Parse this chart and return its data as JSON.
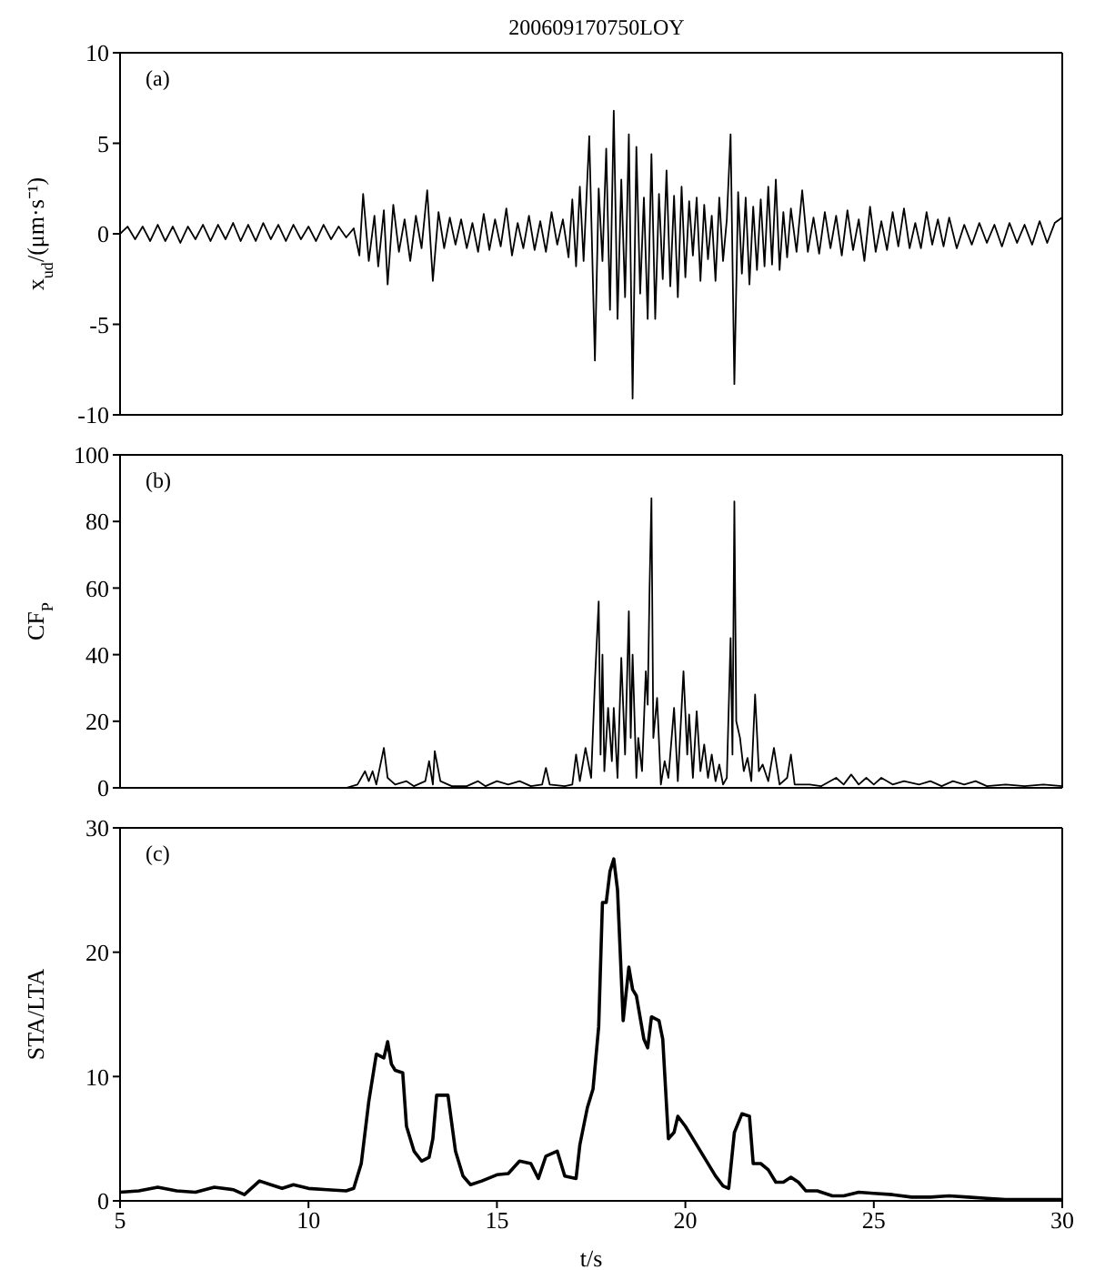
{
  "chart_data": [
    {
      "type": "line",
      "title": "200609170750LOY",
      "ylabel": "x$_{ud}$/(μm·s⁻¹)",
      "annotations": [
        "(a)"
      ],
      "color": "#000000",
      "marker": "none",
      "tick_labels": "y",
      "xlim": [
        5,
        30
      ],
      "xticks": [
        5,
        10,
        15,
        20,
        25,
        30
      ],
      "ylim": [
        -10,
        10
      ],
      "yticks": [
        -10,
        -5,
        0,
        5,
        10
      ],
      "x": [
        5.0,
        5.2,
        5.4,
        5.6,
        5.8,
        6.0,
        6.2,
        6.4,
        6.6,
        6.8,
        7.0,
        7.2,
        7.4,
        7.6,
        7.8,
        8.0,
        8.2,
        8.4,
        8.6,
        8.8,
        9.0,
        9.2,
        9.4,
        9.6,
        9.8,
        10.0,
        10.2,
        10.4,
        10.6,
        10.8,
        11.0,
        11.2,
        11.35,
        11.45,
        11.6,
        11.75,
        11.85,
        12.0,
        12.1,
        12.25,
        12.4,
        12.55,
        12.7,
        12.85,
        13.0,
        13.15,
        13.3,
        13.45,
        13.6,
        13.75,
        13.9,
        14.05,
        14.2,
        14.35,
        14.5,
        14.65,
        14.8,
        14.95,
        15.1,
        15.25,
        15.4,
        15.55,
        15.7,
        15.85,
        16.0,
        16.15,
        16.3,
        16.45,
        16.6,
        16.75,
        16.9,
        17.0,
        17.1,
        17.2,
        17.3,
        17.45,
        17.6,
        17.7,
        17.8,
        17.9,
        18.0,
        18.1,
        18.2,
        18.3,
        18.4,
        18.5,
        18.6,
        18.7,
        18.8,
        18.9,
        19.0,
        19.1,
        19.2,
        19.3,
        19.4,
        19.5,
        19.6,
        19.7,
        19.8,
        19.9,
        20.0,
        20.1,
        20.2,
        20.3,
        20.4,
        20.5,
        20.6,
        20.7,
        20.8,
        20.9,
        21.0,
        21.1,
        21.2,
        21.3,
        21.4,
        21.5,
        21.6,
        21.7,
        21.8,
        21.9,
        22.0,
        22.1,
        22.2,
        22.3,
        22.4,
        22.5,
        22.6,
        22.7,
        22.8,
        22.95,
        23.1,
        23.25,
        23.4,
        23.55,
        23.7,
        23.85,
        24.0,
        24.15,
        24.3,
        24.45,
        24.6,
        24.75,
        24.9,
        25.05,
        25.2,
        25.35,
        25.5,
        25.65,
        25.8,
        25.95,
        26.1,
        26.25,
        26.4,
        26.55,
        26.7,
        26.85,
        27.0,
        27.2,
        27.4,
        27.6,
        27.8,
        28.0,
        28.2,
        28.4,
        28.6,
        28.8,
        29.0,
        29.2,
        29.4,
        29.6,
        29.8,
        30.0
      ],
      "values": [
        0,
        0.4,
        -0.3,
        0.4,
        -0.4,
        0.5,
        -0.4,
        0.4,
        -0.5,
        0.4,
        -0.3,
        0.5,
        -0.4,
        0.5,
        -0.3,
        0.6,
        -0.4,
        0.5,
        -0.4,
        0.6,
        -0.3,
        0.5,
        -0.4,
        0.5,
        -0.3,
        0.4,
        -0.4,
        0.5,
        -0.3,
        0.4,
        -0.2,
        0.3,
        -1.2,
        2.2,
        -1.5,
        1.0,
        -1.8,
        1.3,
        -2.8,
        1.6,
        -1.0,
        0.8,
        -1.5,
        1.0,
        -0.8,
        2.4,
        -2.6,
        1.2,
        -0.8,
        0.9,
        -0.6,
        0.8,
        -0.8,
        0.6,
        -1.0,
        1.1,
        -0.9,
        0.8,
        -0.7,
        1.4,
        -1.2,
        0.6,
        -0.8,
        1.0,
        -0.9,
        0.7,
        -1.0,
        1.2,
        -0.6,
        0.8,
        -1.3,
        1.9,
        -1.8,
        2.6,
        -1.5,
        5.4,
        -7.0,
        2.5,
        -1.5,
        4.7,
        -4.2,
        6.8,
        -4.7,
        3.0,
        -3.5,
        5.5,
        -9.1,
        4.8,
        -3.3,
        2.0,
        -4.7,
        4.4,
        -4.7,
        2.2,
        -2.5,
        3.5,
        -2.9,
        2.1,
        -3.5,
        2.6,
        -2.4,
        1.8,
        -1.2,
        2.0,
        -2.6,
        1.6,
        -1.4,
        1.0,
        -2.6,
        2.0,
        -1.5,
        0.8,
        5.5,
        -8.3,
        2.3,
        -2.2,
        2.0,
        -2.8,
        1.5,
        -2.0,
        1.9,
        -1.8,
        2.6,
        -1.7,
        3.0,
        -2.0,
        1.2,
        -1.3,
        1.4,
        -1.0,
        2.4,
        -1.0,
        0.9,
        -1.1,
        1.2,
        -0.8,
        1.0,
        -1.2,
        1.3,
        -0.9,
        0.8,
        -1.5,
        1.5,
        -1.0,
        0.7,
        -0.9,
        1.2,
        -0.7,
        1.4,
        -0.8,
        0.6,
        -0.8,
        1.2,
        -0.6,
        0.8,
        -0.7,
        0.9,
        -0.8,
        0.5,
        -0.6,
        0.6,
        -0.5,
        0.5,
        -0.7,
        0.6,
        -0.5,
        0.5,
        -0.6,
        0.7,
        -0.5,
        0.6,
        0.9
      ]
    },
    {
      "type": "line",
      "ylabel": "CF$_{P}$",
      "annotations": [
        "(b)"
      ],
      "color": "#000000",
      "marker": "none",
      "tick_labels": "y",
      "xlim": [
        5,
        30
      ],
      "xticks": [
        5,
        10,
        15,
        20,
        25,
        30
      ],
      "ylim": [
        0,
        100
      ],
      "yticks": [
        0,
        20,
        40,
        60,
        80,
        100
      ],
      "x": [
        5,
        11.0,
        11.3,
        11.5,
        11.6,
        11.7,
        11.8,
        12.0,
        12.1,
        12.3,
        12.6,
        12.8,
        13.1,
        13.2,
        13.3,
        13.35,
        13.5,
        13.8,
        14.2,
        14.5,
        14.7,
        15.0,
        15.3,
        15.6,
        15.9,
        16.2,
        16.3,
        16.4,
        16.8,
        17.0,
        17.1,
        17.2,
        17.35,
        17.5,
        17.6,
        17.7,
        17.75,
        17.8,
        17.85,
        17.95,
        18.05,
        18.1,
        18.2,
        18.3,
        18.4,
        18.5,
        18.55,
        18.6,
        18.7,
        18.75,
        18.85,
        18.95,
        19.0,
        19.05,
        19.1,
        19.15,
        19.25,
        19.35,
        19.45,
        19.55,
        19.7,
        19.8,
        19.95,
        20.05,
        20.1,
        20.2,
        20.3,
        20.4,
        20.5,
        20.6,
        20.7,
        20.8,
        20.9,
        21.0,
        21.1,
        21.2,
        21.25,
        21.3,
        21.35,
        21.45,
        21.55,
        21.65,
        21.75,
        21.85,
        21.95,
        22.05,
        22.2,
        22.35,
        22.5,
        22.7,
        22.8,
        22.9,
        23.3,
        23.6,
        24.0,
        24.2,
        24.4,
        24.6,
        24.8,
        25.0,
        25.2,
        25.5,
        25.8,
        26.2,
        26.5,
        26.8,
        27.1,
        27.4,
        27.7,
        28.0,
        28.5,
        29.0,
        29.5,
        30.0
      ],
      "values": [
        0,
        0,
        1,
        5,
        2,
        5,
        1,
        12,
        3,
        1,
        2,
        0.5,
        2,
        8,
        1,
        11,
        2,
        0.5,
        0.5,
        2,
        0.5,
        2,
        1,
        2,
        0.5,
        1,
        6,
        1,
        0.5,
        1,
        10,
        2,
        12,
        3,
        32,
        56,
        10,
        40,
        5,
        24,
        8,
        24,
        3,
        39,
        10,
        53,
        15,
        40,
        3,
        15,
        5,
        35,
        25,
        60,
        87,
        15,
        27,
        1,
        8,
        3,
        24,
        2,
        35,
        10,
        22,
        3,
        23,
        5,
        13,
        3,
        10,
        2,
        7,
        1,
        3,
        45,
        10,
        86,
        20,
        15,
        5,
        9,
        2,
        28,
        5,
        7,
        2,
        12,
        1,
        3,
        10,
        1,
        1,
        0.5,
        3,
        1,
        4,
        1,
        3,
        1,
        3,
        1,
        2,
        1,
        2,
        0.5,
        2,
        1,
        2,
        0.5,
        1,
        0.5,
        1,
        0.5
      ]
    },
    {
      "type": "line",
      "xlabel": "t/s",
      "ylabel": "STA/LTA",
      "annotations": [
        "(c)"
      ],
      "color": "#000000",
      "marker": "none",
      "xlim": [
        5,
        30
      ],
      "xticks": [
        5,
        10,
        15,
        20,
        25,
        30
      ],
      "ylim": [
        0,
        30
      ],
      "yticks": [
        0,
        10,
        20,
        30
      ],
      "x": [
        5,
        5.5,
        6,
        6.5,
        7,
        7.5,
        8,
        8.3,
        8.7,
        9.0,
        9.3,
        9.6,
        10,
        10.5,
        11,
        11.2,
        11.4,
        11.6,
        11.8,
        12.0,
        12.1,
        12.2,
        12.3,
        12.5,
        12.6,
        12.8,
        13.0,
        13.2,
        13.3,
        13.4,
        13.7,
        13.9,
        14.1,
        14.3,
        14.6,
        15,
        15.3,
        15.6,
        15.9,
        16.1,
        16.3,
        16.6,
        16.8,
        17.1,
        17.2,
        17.4,
        17.55,
        17.7,
        17.8,
        17.9,
        18.0,
        18.1,
        18.2,
        18.35,
        18.5,
        18.6,
        18.7,
        18.9,
        19.0,
        19.1,
        19.3,
        19.4,
        19.55,
        19.7,
        19.8,
        20.0,
        20.2,
        20.5,
        20.8,
        21.0,
        21.15,
        21.3,
        21.5,
        21.7,
        21.8,
        22.0,
        22.2,
        22.4,
        22.6,
        22.8,
        23.0,
        23.2,
        23.5,
        23.9,
        24.2,
        24.6,
        25,
        25.5,
        26,
        26.5,
        27,
        27.5,
        28,
        28.5,
        29,
        30
      ],
      "values": [
        0.7,
        0.8,
        1.1,
        0.8,
        0.7,
        1.1,
        0.9,
        0.5,
        1.6,
        1.3,
        1.0,
        1.3,
        1.0,
        0.9,
        0.8,
        1.0,
        3,
        8,
        11.8,
        11.5,
        12.8,
        11,
        10.5,
        10.3,
        6,
        4,
        3.2,
        3.5,
        5,
        8.5,
        8.5,
        4,
        2,
        1.3,
        1.6,
        2.1,
        2.2,
        3.2,
        3.0,
        1.8,
        3.6,
        4.0,
        2.0,
        1.8,
        4.5,
        7.5,
        9,
        14,
        24,
        24,
        26.5,
        27.5,
        25,
        14.5,
        18.8,
        17,
        16.5,
        13,
        12.3,
        14.8,
        14.5,
        13,
        5,
        5.5,
        6.8,
        6.0,
        5.0,
        3.5,
        2,
        1.2,
        1.0,
        5.5,
        7.0,
        6.8,
        3,
        3,
        2.5,
        1.5,
        1.5,
        1.9,
        1.5,
        0.8,
        0.8,
        0.4,
        0.4,
        0.7,
        0.6,
        0.5,
        0.3,
        0.3,
        0.4,
        0.3,
        0.2,
        0.1,
        0.1,
        0.1
      ]
    }
  ]
}
